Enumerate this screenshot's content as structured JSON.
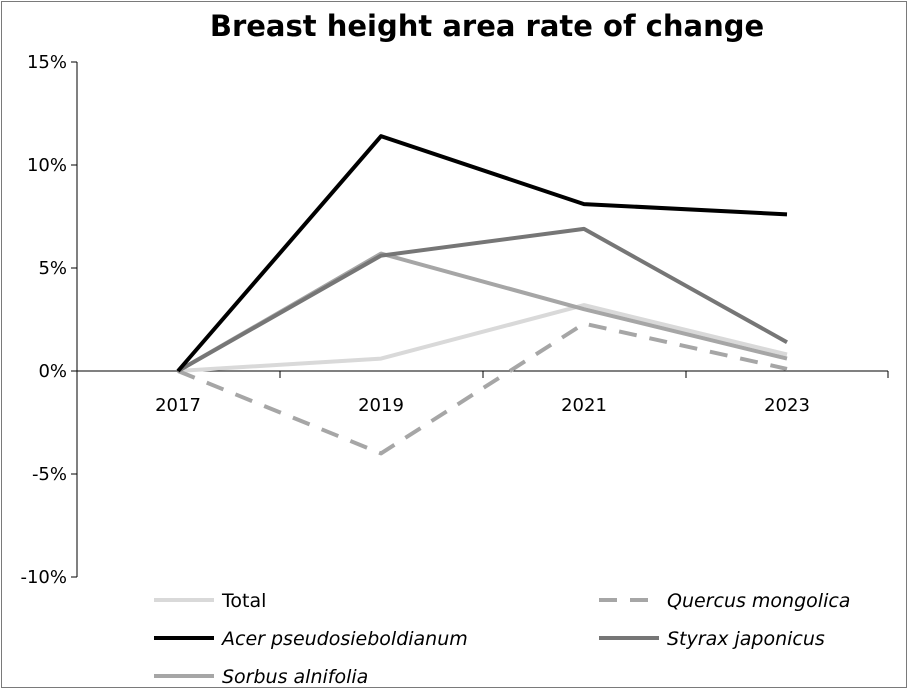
{
  "chart_data": {
    "type": "line",
    "title": "Breast height area rate of change",
    "categories": [
      "2017",
      "2019",
      "2021",
      "2023"
    ],
    "ylim": [
      -10,
      15
    ],
    "yticks": [
      -10,
      -5,
      0,
      5,
      10,
      15
    ],
    "ytick_labels": [
      "-10%",
      "-5%",
      "0%",
      "5%",
      "10%",
      "15%"
    ],
    "legend_position": "bottom",
    "grid": false,
    "series": [
      {
        "name": "Total",
        "values": [
          0,
          0.6,
          3.2,
          0.8
        ],
        "color": "#d9d9d9",
        "dash": false,
        "italic": false
      },
      {
        "name": "Quercus mongolica",
        "values": [
          0,
          -4.0,
          2.3,
          0.1
        ],
        "color": "#a6a6a6",
        "dash": true,
        "italic": true
      },
      {
        "name": "Acer pseudosieboldianum",
        "values": [
          0,
          11.4,
          8.1,
          7.6
        ],
        "color": "#000000",
        "dash": false,
        "italic": true
      },
      {
        "name": "Styrax japonicus",
        "values": [
          0,
          5.6,
          6.9,
          1.4
        ],
        "color": "#767676",
        "dash": false,
        "italic": true
      },
      {
        "name": "Sorbus alnifolia",
        "values": [
          0,
          5.7,
          3.0,
          0.6
        ],
        "color": "#a6a6a6",
        "dash": false,
        "italic": true
      }
    ]
  }
}
